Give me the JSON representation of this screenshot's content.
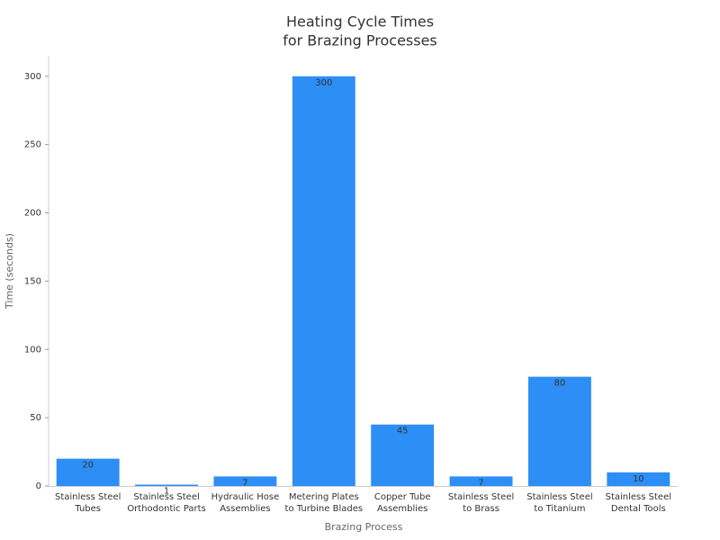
{
  "chart_data": {
    "type": "bar",
    "title": [
      "Heating Cycle Times",
      "for Brazing Processes"
    ],
    "x_label": "Brazing Process",
    "y_label": "Time (seconds)",
    "categories": [
      [
        "Stainless Steel",
        "Tubes"
      ],
      [
        "Stainless Steel",
        "Orthodontic Parts"
      ],
      [
        "Hydraulic Hose",
        "Assemblies"
      ],
      [
        "Metering Plates",
        "to Turbine Blades"
      ],
      [
        "Copper Tube",
        "Assemblies"
      ],
      [
        "Stainless Steel",
        "to Brass"
      ],
      [
        "Stainless Steel",
        "to Titanium"
      ],
      [
        "Stainless Steel",
        "Dental Tools"
      ]
    ],
    "values": [
      20,
      1,
      7,
      300,
      45,
      7,
      80,
      10
    ],
    "color": "#2d8ef5",
    "ylim": [
      0,
      315
    ],
    "yticks": [
      0,
      50,
      100,
      150,
      200,
      250,
      300
    ],
    "grid": false
  }
}
